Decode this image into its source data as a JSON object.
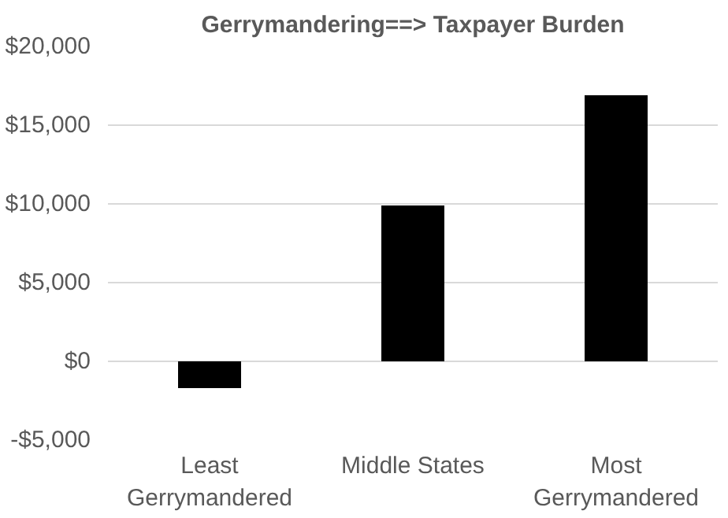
{
  "chart_data": {
    "type": "bar",
    "title": "Gerrymandering==> Taxpayer Burden",
    "categories": [
      "Least Gerrymandered",
      "Middle States",
      "Most Gerrymandered"
    ],
    "values": [
      -1700,
      9900,
      16900
    ],
    "color": "#000000",
    "ylim": [
      -5000,
      20000
    ],
    "yticks": [
      {
        "value": -5000,
        "label": "-$5,000"
      },
      {
        "value": 0,
        "label": "$0"
      },
      {
        "value": 5000,
        "label": "$5,000"
      },
      {
        "value": 10000,
        "label": "$10,000"
      },
      {
        "value": 15000,
        "label": "$15,000"
      },
      {
        "value": 20000,
        "label": "$20,000"
      }
    ],
    "grid": "y"
  }
}
